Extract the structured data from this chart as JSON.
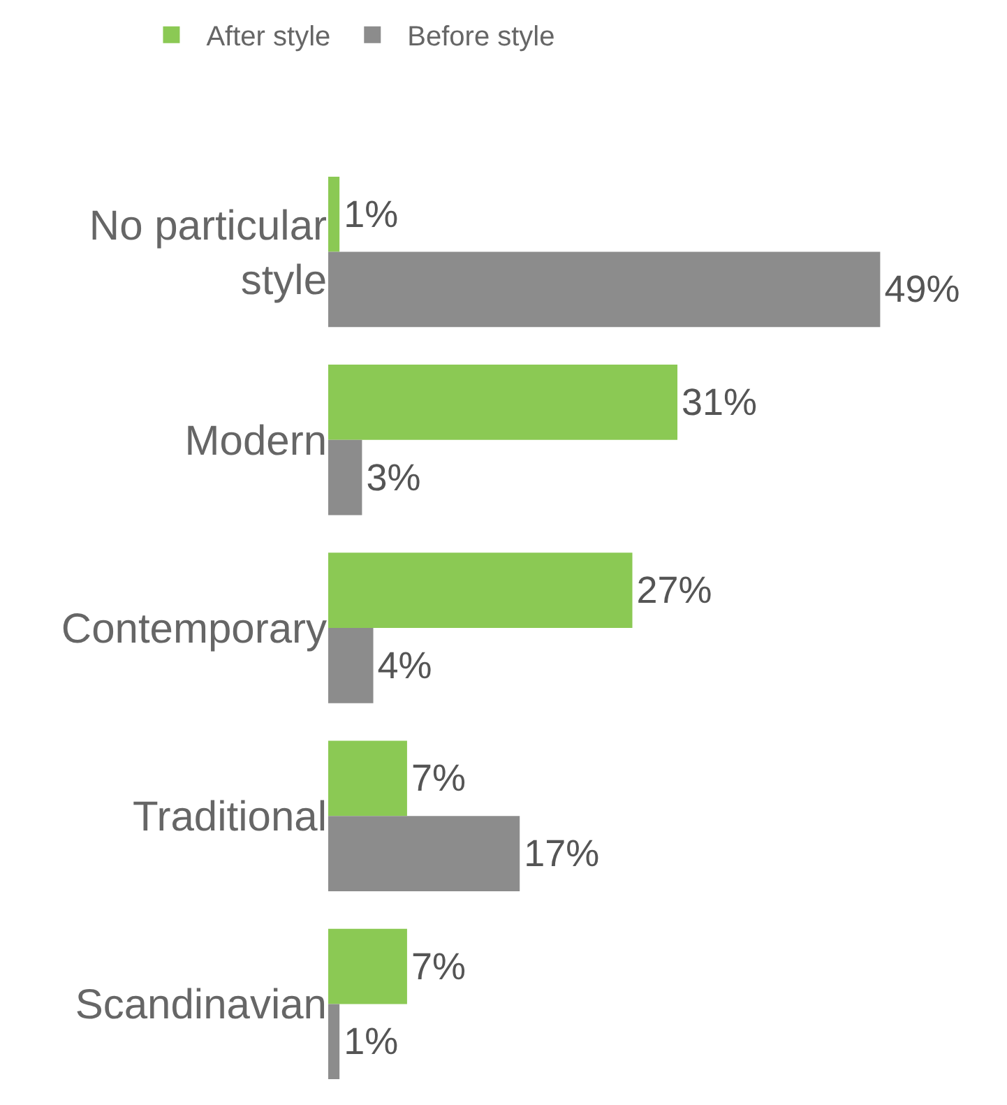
{
  "chart_data": {
    "type": "bar",
    "orientation": "horizontal",
    "categories": [
      "No particular\nstyle",
      "Modern",
      "Contemporary",
      "Traditional",
      "Scandinavian"
    ],
    "series": [
      {
        "name": "After style",
        "color": "#8bc954",
        "values": [
          1,
          31,
          27,
          7,
          7
        ],
        "value_labels": [
          "1%",
          "31%",
          "27%",
          "7%",
          "7%"
        ]
      },
      {
        "name": "Before style",
        "color": "#8c8c8c",
        "values": [
          49,
          3,
          4,
          17,
          1
        ],
        "value_labels": [
          "49%",
          "3%",
          "4%",
          "17%",
          "1%"
        ]
      }
    ],
    "legend": "top left"
  }
}
